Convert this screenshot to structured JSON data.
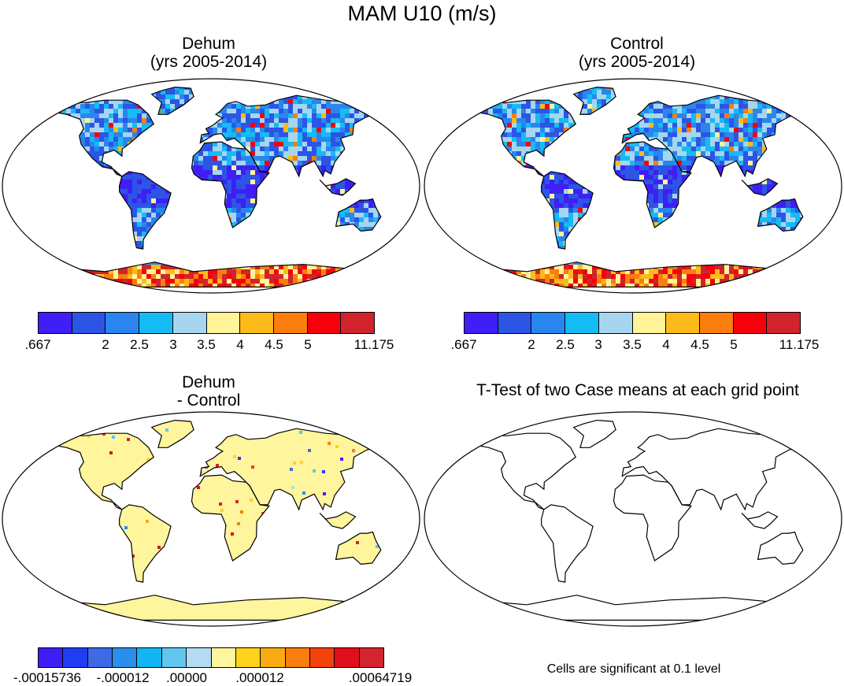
{
  "figure": {
    "title": "MAM U10 (m/s)"
  },
  "panels": [
    {
      "id": "dehum",
      "title_line1": "Dehum",
      "title_line2": "(yrs 2005-2014)"
    },
    {
      "id": "control",
      "title_line1": "Control",
      "title_line2": "(yrs 2005-2014)"
    },
    {
      "id": "diff",
      "title_line1": "Dehum",
      "title_line2": "- Control"
    },
    {
      "id": "ttest",
      "title_line1": "T-Test of two Case means at each grid point",
      "title_line2": ""
    }
  ],
  "colorbars": {
    "main": {
      "colors": [
        "#3f1ff5",
        "#2c55e6",
        "#2a86ee",
        "#14bcf3",
        "#a6d6ef",
        "#fff49a",
        "#fcbb18",
        "#fb7e0e",
        "#f7000c",
        "#d1232d"
      ],
      "labels": [
        ".667",
        "2",
        "2.5",
        "3",
        "3.5",
        "4",
        "4.5",
        "5",
        "11.175"
      ]
    },
    "diff": {
      "colors": [
        "#3d1ff6",
        "#1f3ef4",
        "#3e6ae6",
        "#2a8eea",
        "#12b6f3",
        "#61c7f0",
        "#b3dbf1",
        "#fff59c",
        "#fdd31e",
        "#f9aa12",
        "#f87e0f",
        "#f4420c",
        "#e0101a",
        "#d32530"
      ],
      "labels": [
        "-.00015736",
        "-.000012",
        ".00000",
        ".000012",
        ".00064719"
      ]
    }
  },
  "ttest_note": "Cells are significant at 0.1 level",
  "colors": {
    "ocean": "#ffffff",
    "land_outline": "#000000",
    "diff_background": "#fff59c"
  }
}
